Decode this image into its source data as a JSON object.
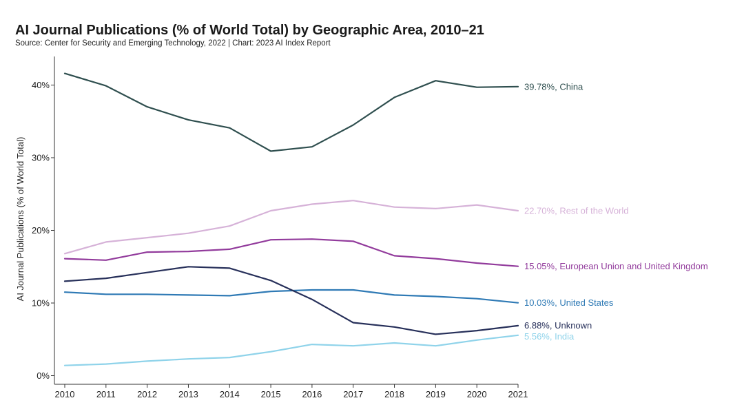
{
  "title": "AI Journal Publications (% of World Total) by Geographic Area, 2010–21",
  "subtitle": "Source: Center for Security and Emerging Technology, 2022 | Chart: 2023 AI Index Report",
  "chart_data": {
    "type": "line",
    "ylabel": "AI Journal Publications (% of World Total)",
    "xlabel": "",
    "x": [
      "2010",
      "2011",
      "2012",
      "2013",
      "2014",
      "2015",
      "2016",
      "2017",
      "2018",
      "2019",
      "2020",
      "2021"
    ],
    "ylim": [
      0,
      43
    ],
    "y_ticks": [
      {
        "value": 0,
        "label": "0%"
      },
      {
        "value": 10,
        "label": "10%"
      },
      {
        "value": 20,
        "label": "20%"
      },
      {
        "value": 30,
        "label": "30%"
      },
      {
        "value": 40,
        "label": "40%"
      }
    ],
    "grid": false,
    "legend": "end-of-line labels",
    "series": [
      {
        "name": "China",
        "color": "#2f4f4f",
        "end_label": "39.78%, China",
        "values": [
          41.6,
          39.9,
          37.0,
          35.2,
          34.1,
          30.9,
          31.5,
          34.5,
          38.3,
          40.6,
          39.7,
          39.78
        ]
      },
      {
        "name": "Rest of the World",
        "color": "#d6b2d8",
        "end_label": "22.70%, Rest of the World",
        "values": [
          16.8,
          18.4,
          19.0,
          19.6,
          20.6,
          22.7,
          23.6,
          24.1,
          23.2,
          23.0,
          23.5,
          22.7
        ]
      },
      {
        "name": "European Union and United Kingdom",
        "color": "#923b9c",
        "end_label": "15.05%, European Union and United Kingdom",
        "values": [
          16.1,
          15.9,
          17.0,
          17.1,
          17.4,
          18.7,
          18.8,
          18.5,
          16.5,
          16.1,
          15.5,
          15.05
        ]
      },
      {
        "name": "United States",
        "color": "#2f7ab5",
        "end_label": "10.03%, United States",
        "values": [
          11.5,
          11.2,
          11.2,
          11.1,
          11.0,
          11.6,
          11.8,
          11.8,
          11.1,
          10.9,
          10.6,
          10.03
        ]
      },
      {
        "name": "Unknown",
        "color": "#27305a",
        "end_label": "6.88%, Unknown",
        "values": [
          13.0,
          13.4,
          14.2,
          15.0,
          14.8,
          13.1,
          10.5,
          7.3,
          6.7,
          5.7,
          6.2,
          6.88
        ]
      },
      {
        "name": "India",
        "color": "#8fd3ea",
        "end_label": "5.56%, India",
        "values": [
          1.4,
          1.6,
          2.0,
          2.3,
          2.5,
          3.3,
          4.3,
          4.1,
          4.5,
          4.1,
          4.9,
          5.56
        ]
      }
    ]
  }
}
